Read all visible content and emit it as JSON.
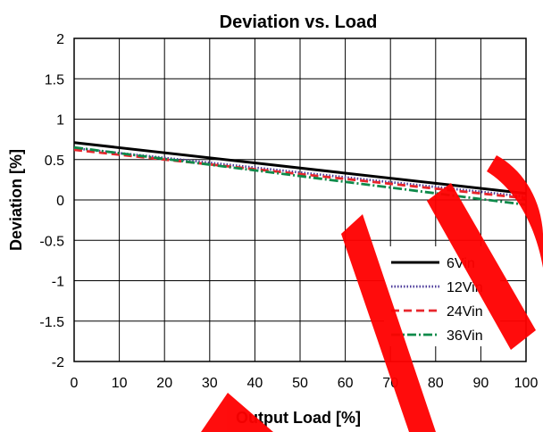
{
  "chart_data": {
    "type": "line",
    "title": "Deviation vs. Load",
    "xlabel": "Output Load [%]",
    "ylabel": "Deviation [%]",
    "xlim": [
      0,
      100
    ],
    "ylim": [
      -2,
      2
    ],
    "xticks": [
      0,
      10,
      20,
      30,
      40,
      50,
      60,
      70,
      80,
      90,
      100
    ],
    "yticks": [
      2,
      1.5,
      1,
      0.5,
      0,
      -0.5,
      -1,
      -1.5,
      -2
    ],
    "ytick_labels": [
      "2",
      "1.5",
      "1",
      "0.5",
      "0",
      "-0.5",
      "-1",
      "-1.5",
      "-2"
    ],
    "grid": true,
    "legend_position": "bottom-right",
    "series": [
      {
        "name": "6Vin",
        "x": [
          0,
          100
        ],
        "y": [
          0.71,
          0.08
        ],
        "color": "#000000",
        "style": "solid"
      },
      {
        "name": "12Vin",
        "x": [
          0,
          100
        ],
        "y": [
          0.64,
          0.04
        ],
        "color": "#4b3a9a",
        "style": "dotted"
      },
      {
        "name": "24Vin",
        "x": [
          0,
          100
        ],
        "y": [
          0.62,
          0.02
        ],
        "color": "#e8262c",
        "style": "dashed"
      },
      {
        "name": "36Vin",
        "x": [
          0,
          100
        ],
        "y": [
          0.65,
          -0.06
        ],
        "color": "#0e8a4a",
        "style": "dashdot"
      }
    ],
    "watermark_color": "#ff0000"
  }
}
